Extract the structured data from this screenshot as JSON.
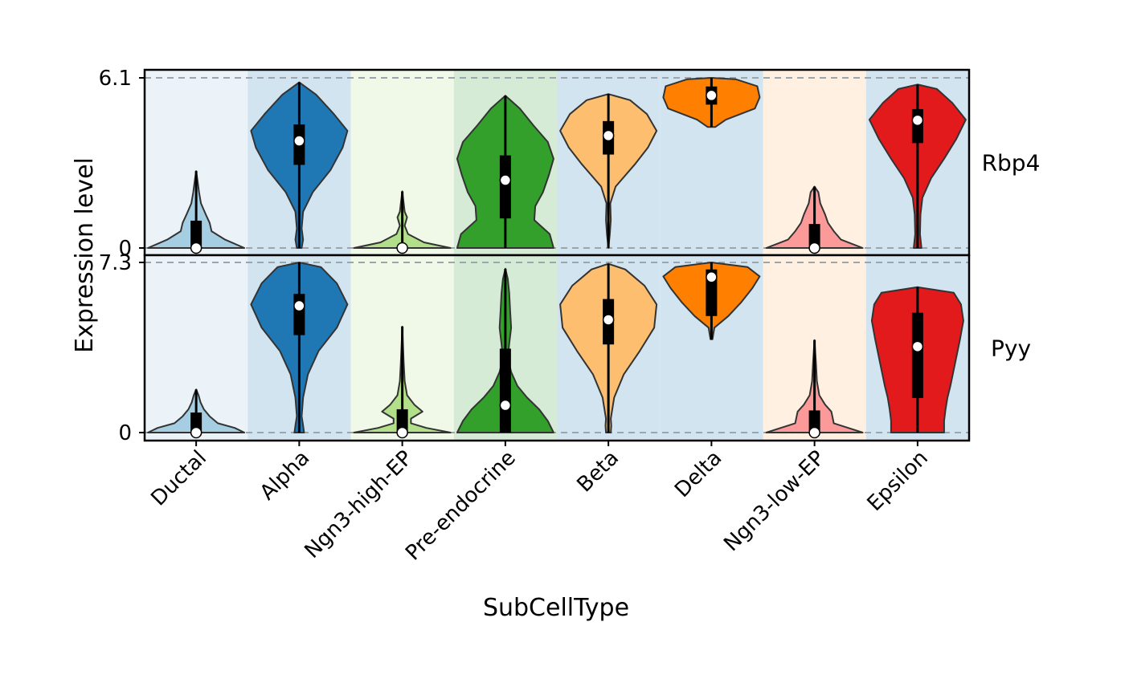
{
  "chart_data": {
    "type": "violin",
    "xlabel": "SubCellType",
    "ylabel": "Expression level",
    "categories": [
      "Ductal",
      "Alpha",
      "Ngn3-high-EP",
      "Pre-endocrine",
      "Beta",
      "Delta",
      "Ngn3-low-EP",
      "Epsilon"
    ],
    "colors": [
      "#A6CEE3",
      "#1F78B4",
      "#B2DF8A",
      "#33A02C",
      "#FDBF6F",
      "#FF7F00",
      "#FB9A99",
      "#E31A1C"
    ],
    "background_colors": [
      "#EBF3F8",
      "#D2E4F0",
      "#F0F8E8",
      "#D6EBD5",
      "#D2E4F0",
      "#D2E4F0",
      "#FFF0E2",
      "#D2E4F0"
    ],
    "panels": [
      {
        "gene": "Rbp4",
        "ylim": [
          0,
          6.1
        ],
        "y_tick_labels": [
          "6.1",
          "0"
        ],
        "violins": [
          {
            "min": 0,
            "max": 2.76,
            "median": 0.0,
            "q1": 0.0,
            "q3": 0.98,
            "density": [
              [
                0.0,
                1.0
              ],
              [
                0.3,
                0.6
              ],
              [
                0.6,
                0.32
              ],
              [
                0.9,
                0.28
              ],
              [
                1.2,
                0.2
              ],
              [
                1.6,
                0.1
              ],
              [
                2.0,
                0.06
              ],
              [
                2.4,
                0.03
              ],
              [
                2.76,
                0.0
              ]
            ]
          },
          {
            "min": 0,
            "max": 5.94,
            "median": 3.84,
            "q1": 2.98,
            "q3": 4.43,
            "density": [
              [
                0.0,
                0.05
              ],
              [
                0.3,
                0.08
              ],
              [
                0.7,
                0.05
              ],
              [
                1.3,
                0.08
              ],
              [
                2.0,
                0.28
              ],
              [
                2.8,
                0.65
              ],
              [
                3.6,
                0.9
              ],
              [
                4.2,
                1.0
              ],
              [
                4.8,
                0.72
              ],
              [
                5.5,
                0.35
              ],
              [
                5.94,
                0.0
              ]
            ]
          },
          {
            "min": 0,
            "max": 2.03,
            "median": 0.0,
            "q1": 0.0,
            "q3": 0.0,
            "density": [
              [
                0.0,
                1.0
              ],
              [
                0.2,
                0.45
              ],
              [
                0.5,
                0.12
              ],
              [
                0.8,
                0.05
              ],
              [
                1.1,
                0.1
              ],
              [
                1.3,
                0.05
              ],
              [
                1.6,
                0.03
              ],
              [
                2.03,
                0.0
              ]
            ]
          },
          {
            "min": 0,
            "max": 5.46,
            "median": 2.43,
            "q1": 1.06,
            "q3": 3.32,
            "density": [
              [
                0.0,
                1.0
              ],
              [
                0.5,
                0.92
              ],
              [
                1.0,
                0.6
              ],
              [
                1.5,
                0.62
              ],
              [
                2.0,
                0.78
              ],
              [
                2.6,
                0.9
              ],
              [
                3.2,
                1.0
              ],
              [
                3.8,
                0.88
              ],
              [
                4.4,
                0.58
              ],
              [
                5.0,
                0.3
              ],
              [
                5.46,
                0.0
              ]
            ]
          },
          {
            "min": 0,
            "max": 5.52,
            "median": 4.03,
            "q1": 3.35,
            "q3": 4.55,
            "density": [
              [
                0.0,
                0.0
              ],
              [
                0.5,
                0.03
              ],
              [
                1.0,
                0.05
              ],
              [
                1.6,
                0.04
              ],
              [
                2.2,
                0.15
              ],
              [
                3.0,
                0.55
              ],
              [
                3.6,
                0.82
              ],
              [
                4.2,
                1.0
              ],
              [
                4.8,
                0.8
              ],
              [
                5.3,
                0.45
              ],
              [
                5.52,
                0.0
              ]
            ]
          },
          {
            "min": 4.34,
            "max": 6.1,
            "median": 5.47,
            "q1": 5.14,
            "q3": 5.79,
            "density": [
              [
                4.34,
                0.08
              ],
              [
                4.6,
                0.3
              ],
              [
                5.0,
                0.9
              ],
              [
                5.4,
                1.0
              ],
              [
                5.8,
                0.95
              ],
              [
                6.05,
                0.5
              ],
              [
                6.1,
                0.0
              ]
            ]
          },
          {
            "min": 0,
            "max": 2.2,
            "median": 0.0,
            "q1": 0.0,
            "q3": 0.86,
            "density": [
              [
                0.0,
                1.0
              ],
              [
                0.3,
                0.55
              ],
              [
                0.6,
                0.4
              ],
              [
                0.9,
                0.28
              ],
              [
                1.2,
                0.22
              ],
              [
                1.6,
                0.12
              ],
              [
                2.0,
                0.08
              ],
              [
                2.2,
                0.0
              ]
            ]
          },
          {
            "min": 0,
            "max": 5.86,
            "median": 4.58,
            "q1": 3.76,
            "q3": 4.98,
            "density": [
              [
                0.0,
                0.08
              ],
              [
                0.5,
                0.05
              ],
              [
                1.2,
                0.06
              ],
              [
                1.8,
                0.1
              ],
              [
                2.5,
                0.28
              ],
              [
                3.2,
                0.55
              ],
              [
                3.9,
                0.8
              ],
              [
                4.6,
                1.0
              ],
              [
                5.2,
                0.72
              ],
              [
                5.7,
                0.4
              ],
              [
                5.86,
                0.0
              ]
            ]
          }
        ]
      },
      {
        "gene": "Pyy",
        "ylim": [
          0,
          7.3
        ],
        "y_tick_labels": [
          "7.3",
          "0"
        ],
        "violins": [
          {
            "min": 0,
            "max": 1.85,
            "median": 0.0,
            "q1": 0.0,
            "q3": 0.86,
            "density": [
              [
                0.0,
                1.0
              ],
              [
                0.2,
                0.8
              ],
              [
                0.4,
                0.45
              ],
              [
                0.7,
                0.28
              ],
              [
                1.0,
                0.16
              ],
              [
                1.3,
                0.09
              ],
              [
                1.6,
                0.05
              ],
              [
                1.85,
                0.0
              ]
            ]
          },
          {
            "min": 0,
            "max": 7.3,
            "median": 5.44,
            "q1": 4.18,
            "q3": 5.95,
            "density": [
              [
                0.0,
                0.1
              ],
              [
                0.3,
                0.08
              ],
              [
                0.7,
                0.05
              ],
              [
                1.5,
                0.08
              ],
              [
                2.5,
                0.18
              ],
              [
                3.5,
                0.4
              ],
              [
                4.5,
                0.78
              ],
              [
                5.5,
                1.0
              ],
              [
                6.4,
                0.78
              ],
              [
                7.1,
                0.45
              ],
              [
                7.3,
                0.0
              ]
            ]
          },
          {
            "min": 0,
            "max": 4.55,
            "median": 0.0,
            "q1": 0.0,
            "q3": 1.0,
            "density": [
              [
                0.0,
                1.0
              ],
              [
                0.2,
                0.5
              ],
              [
                0.4,
                0.18
              ],
              [
                0.6,
                0.18
              ],
              [
                0.9,
                0.42
              ],
              [
                1.2,
                0.25
              ],
              [
                1.6,
                0.1
              ],
              [
                2.2,
                0.05
              ],
              [
                3.0,
                0.03
              ],
              [
                4.0,
                0.01
              ],
              [
                4.55,
                0.0
              ]
            ]
          },
          {
            "min": 0,
            "max": 7.03,
            "median": 1.17,
            "q1": 0.0,
            "q3": 3.6,
            "density": [
              [
                0.0,
                1.0
              ],
              [
                0.5,
                0.88
              ],
              [
                1.0,
                0.7
              ],
              [
                1.5,
                0.45
              ],
              [
                2.0,
                0.25
              ],
              [
                2.6,
                0.12
              ],
              [
                3.2,
                0.05
              ],
              [
                3.8,
                0.08
              ],
              [
                4.5,
                0.12
              ],
              [
                5.2,
                0.1
              ],
              [
                6.0,
                0.08
              ],
              [
                6.6,
                0.05
              ],
              [
                7.03,
                0.0
              ]
            ]
          },
          {
            "min": 0,
            "max": 7.24,
            "median": 4.84,
            "q1": 3.78,
            "q3": 5.73,
            "density": [
              [
                0.0,
                0.05
              ],
              [
                0.3,
                0.06
              ],
              [
                0.6,
                0.05
              ],
              [
                1.5,
                0.12
              ],
              [
                2.5,
                0.32
              ],
              [
                3.5,
                0.65
              ],
              [
                4.5,
                0.95
              ],
              [
                5.5,
                1.0
              ],
              [
                6.3,
                0.75
              ],
              [
                7.0,
                0.35
              ],
              [
                7.24,
                0.0
              ]
            ]
          },
          {
            "min": 4.0,
            "max": 7.3,
            "median": 6.67,
            "q1": 5.0,
            "q3": 7.0,
            "density": [
              [
                4.0,
                0.02
              ],
              [
                4.5,
                0.06
              ],
              [
                5.0,
                0.35
              ],
              [
                5.6,
                0.62
              ],
              [
                6.2,
                0.85
              ],
              [
                6.7,
                1.0
              ],
              [
                7.1,
                0.75
              ],
              [
                7.3,
                0.0
              ]
            ]
          },
          {
            "min": 0,
            "max": 3.97,
            "median": 0.0,
            "q1": 0.0,
            "q3": 0.95,
            "density": [
              [
                0.0,
                1.0
              ],
              [
                0.2,
                0.7
              ],
              [
                0.4,
                0.4
              ],
              [
                0.6,
                0.38
              ],
              [
                0.9,
                0.35
              ],
              [
                1.2,
                0.22
              ],
              [
                1.6,
                0.1
              ],
              [
                2.2,
                0.05
              ],
              [
                3.0,
                0.03
              ],
              [
                3.97,
                0.0
              ]
            ]
          },
          {
            "min": 0,
            "max": 6.24,
            "median": 3.69,
            "q1": 1.48,
            "q3": 5.14,
            "density": [
              [
                0.0,
                0.55
              ],
              [
                0.5,
                0.55
              ],
              [
                1.0,
                0.58
              ],
              [
                1.5,
                0.62
              ],
              [
                2.0,
                0.68
              ],
              [
                3.0,
                0.78
              ],
              [
                4.0,
                0.88
              ],
              [
                4.8,
                0.95
              ],
              [
                5.5,
                0.9
              ],
              [
                6.0,
                0.75
              ],
              [
                6.24,
                0.0
              ]
            ]
          }
        ]
      }
    ]
  }
}
